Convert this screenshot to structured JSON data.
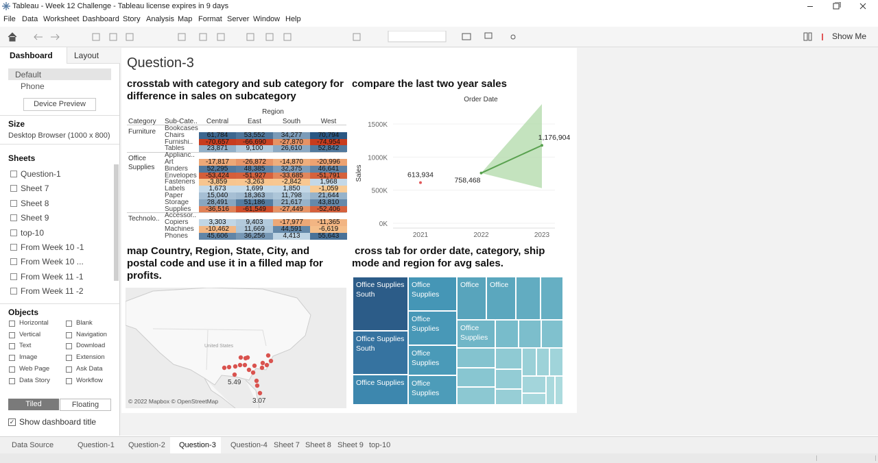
{
  "window": {
    "title": "Tableau - Week 12 Challenge - Tableau license expires in 9 days"
  },
  "menu": [
    "File",
    "Data",
    "Worksheet",
    "Dashboard",
    "Story",
    "Analysis",
    "Map",
    "Format",
    "Server",
    "Window",
    "Help"
  ],
  "toolbar": {
    "show_me": "Show Me"
  },
  "sidebar": {
    "tabs": [
      "Dashboard",
      "Layout"
    ],
    "devices": [
      "Default",
      "Phone"
    ],
    "device_preview": "Device Preview",
    "size_title": "Size",
    "size_value": "Desktop Browser (1000 x 800)",
    "sheets_title": "Sheets",
    "sheets": [
      "Question-1",
      "Sheet 7",
      "Sheet 8",
      "Sheet 9",
      "top-10",
      "From Week 10 -1",
      "From Week 10 ...",
      "From Week 11 -1",
      "From Week 11 -2"
    ],
    "objects_title": "Objects",
    "objects": [
      "Horizontal",
      "Blank",
      "Vertical",
      "Navigation",
      "Text",
      "Download",
      "Image",
      "Extension",
      "Web Page",
      "Ask Data",
      "Data Story",
      "Workflow"
    ],
    "layout_modes": [
      "Tiled",
      "Floating"
    ],
    "show_title": "Show dashboard title"
  },
  "dashboard": {
    "title": "Question-3",
    "crosstab": {
      "title": "crosstab with category and sub category for difference in sales on subcategory",
      "column_header": "Region",
      "row_headers": [
        "Category",
        "Sub-Cate.."
      ],
      "columns": [
        "Central",
        "East",
        "South",
        "West"
      ],
      "groups": [
        {
          "category": "Furniture",
          "rows": [
            {
              "sub": "Bookcases"
            },
            {
              "sub": "Chairs",
              "cells": [
                "61,784",
                "53,552",
                "34,277",
                "70,794"
              ]
            },
            {
              "sub": "Furnishi..",
              "cells": [
                "-70,657",
                "-66,690",
                "-27,870",
                "-74,954"
              ]
            },
            {
              "sub": "Tables",
              "cells": [
                "23,871",
                "9,100",
                "26,610",
                "52,842"
              ]
            }
          ]
        },
        {
          "category": "Office Supplies",
          "rows": [
            {
              "sub": "Applianc.."
            },
            {
              "sub": "Art",
              "cells": [
                "-17,817",
                "-26,872",
                "-14,870",
                "-20,996"
              ]
            },
            {
              "sub": "Binders",
              "cells": [
                "52,295",
                "48,385",
                "32,375",
                "46,641"
              ]
            },
            {
              "sub": "Envelopes",
              "cells": [
                "-53,424",
                "-51,927",
                "-33,685",
                "-51,791"
              ]
            },
            {
              "sub": "Fasteners",
              "cells": [
                "-3,859",
                "-3,263",
                "-2,842",
                "1,968"
              ]
            },
            {
              "sub": "Labels",
              "cells": [
                "1,673",
                "1,699",
                "1,850",
                "-1,059"
              ]
            },
            {
              "sub": "Paper",
              "cells": [
                "15,040",
                "18,363",
                "11,798",
                "21,644"
              ]
            },
            {
              "sub": "Storage",
              "cells": [
                "28,491",
                "51,186",
                "21,617",
                "43,810"
              ]
            },
            {
              "sub": "Supplies",
              "cells": [
                "-36,516",
                "-61,549",
                "-27,449",
                "-52,406"
              ]
            }
          ]
        },
        {
          "category": "Technolo..",
          "rows": [
            {
              "sub": "Accessor.."
            },
            {
              "sub": "Copiers",
              "cells": [
                "3,303",
                "9,403",
                "-17,977",
                "-11,365"
              ]
            },
            {
              "sub": "Machines",
              "cells": [
                "-10,462",
                "11,669",
                "44,591",
                "-6,619"
              ]
            },
            {
              "sub": "Phones",
              "cells": [
                "45,606",
                "36,256",
                "4,413",
                "55,643"
              ]
            }
          ]
        }
      ]
    },
    "line_chart": {
      "type": "line",
      "title": "compare the last two year sales",
      "x_header": "Order Date",
      "y_label": "Sales",
      "categories": [
        "2021",
        "2022",
        "2023"
      ],
      "ylim": [
        0,
        1800000
      ],
      "yticks": [
        {
          "value": 0,
          "label": "0K"
        },
        {
          "value": 500000,
          "label": "500K"
        },
        {
          "value": 1000000,
          "label": "1000K"
        },
        {
          "value": 1500000,
          "label": "1500K"
        }
      ],
      "series": [
        {
          "color": "#e15759",
          "values": [
            613934,
            null,
            null
          ],
          "value_labels": [
            "613,934",
            null,
            null
          ]
        },
        {
          "color": "#59a14f",
          "values": [
            null,
            758468,
            1176904
          ],
          "value_labels": [
            null,
            "758,468",
            "1,176,904"
          ]
        }
      ],
      "band": {
        "color": "#b5dcae",
        "lower": [
          null,
          758468,
          530000
        ],
        "upper": [
          null,
          758468,
          1800000
        ]
      }
    },
    "map": {
      "title": "map Country, Region, State, City, and postal code and use it in a filled map for profits.",
      "country_label": "United States",
      "labels": [
        "5.49",
        "3.07"
      ],
      "attribution": "© 2022 Mapbox © OpenStreetMap"
    },
    "treemap": {
      "title": " cross tab for order date, category, ship mode and region for avg sales.",
      "labels": [
        "Office Supplies South",
        "Office Supplies South",
        "Office Supplies",
        "Office Supplies",
        "Office Supplies",
        "Office Supplies",
        "Office Supplies",
        "Office",
        "Office",
        "Office Supplies"
      ]
    }
  },
  "tabs": [
    "Data Source",
    "Question-1",
    "Question-2",
    "Question-3",
    "Question-4",
    "Sheet 7",
    "Sheet 8",
    "Sheet 9",
    "top-10"
  ]
}
